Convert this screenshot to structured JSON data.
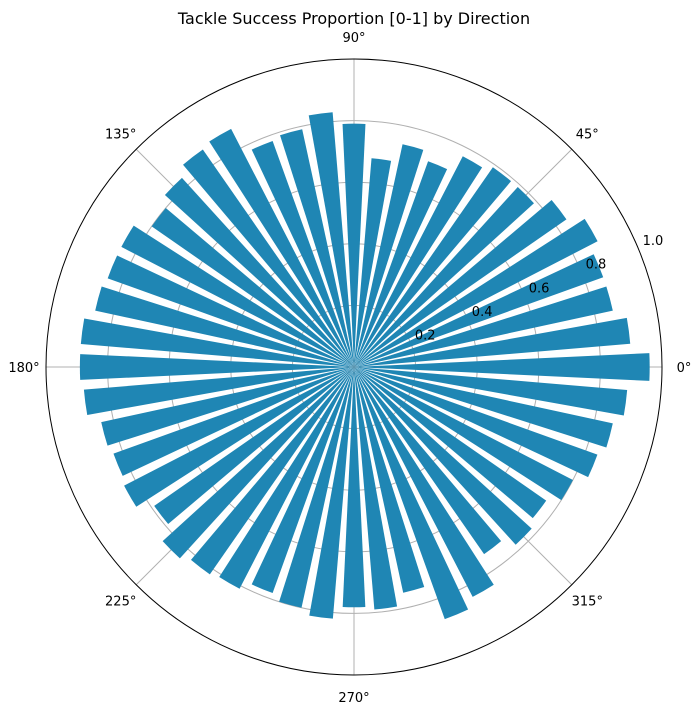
{
  "chart_data": {
    "type": "bar",
    "projection": "polar",
    "title": "Tackle Success Proportion [0-1] by Direction",
    "bar_color": "#1f86b4",
    "bar_width_deg": 5.4,
    "ylim": [
      0,
      1.0
    ],
    "radial_ticks": [
      0.2,
      0.4,
      0.6,
      0.8,
      1.0
    ],
    "radial_tick_labels": [
      "0.2",
      "0.4",
      "0.6",
      "0.8",
      "1.0"
    ],
    "angle_ticks": [
      0,
      45,
      90,
      135,
      180,
      225,
      270,
      315
    ],
    "angle_tick_labels": [
      "0°",
      "45°",
      "90°",
      "135°",
      "180°",
      "225°",
      "270°",
      "315°"
    ],
    "grid": true,
    "theta_deg": [
      0,
      7.5,
      15,
      22.5,
      30,
      37.5,
      45,
      52.5,
      60,
      67.5,
      75,
      82.5,
      90,
      97.5,
      105,
      112.5,
      120,
      127.5,
      135,
      142.5,
      150,
      157.5,
      165,
      172.5,
      180,
      187.5,
      195,
      202.5,
      210,
      217.5,
      225,
      232.5,
      240,
      247.5,
      255,
      262.5,
      270,
      277.5,
      285,
      292.5,
      300,
      307.5,
      315,
      322.5,
      330,
      337.5,
      345,
      352.5
    ],
    "values": [
      0.96,
      0.9,
      0.86,
      0.86,
      0.89,
      0.84,
      0.79,
      0.79,
      0.77,
      0.71,
      0.74,
      0.68,
      0.79,
      0.83,
      0.79,
      0.78,
      0.87,
      0.86,
      0.83,
      0.8,
      0.85,
      0.85,
      0.86,
      0.89,
      0.89,
      0.88,
      0.84,
      0.83,
      0.84,
      0.79,
      0.84,
      0.82,
      0.81,
      0.78,
      0.8,
      0.82,
      0.78,
      0.79,
      0.75,
      0.87,
      0.84,
      0.74,
      0.78,
      0.76,
      0.8,
      0.84,
      0.86,
      0.89
    ]
  }
}
